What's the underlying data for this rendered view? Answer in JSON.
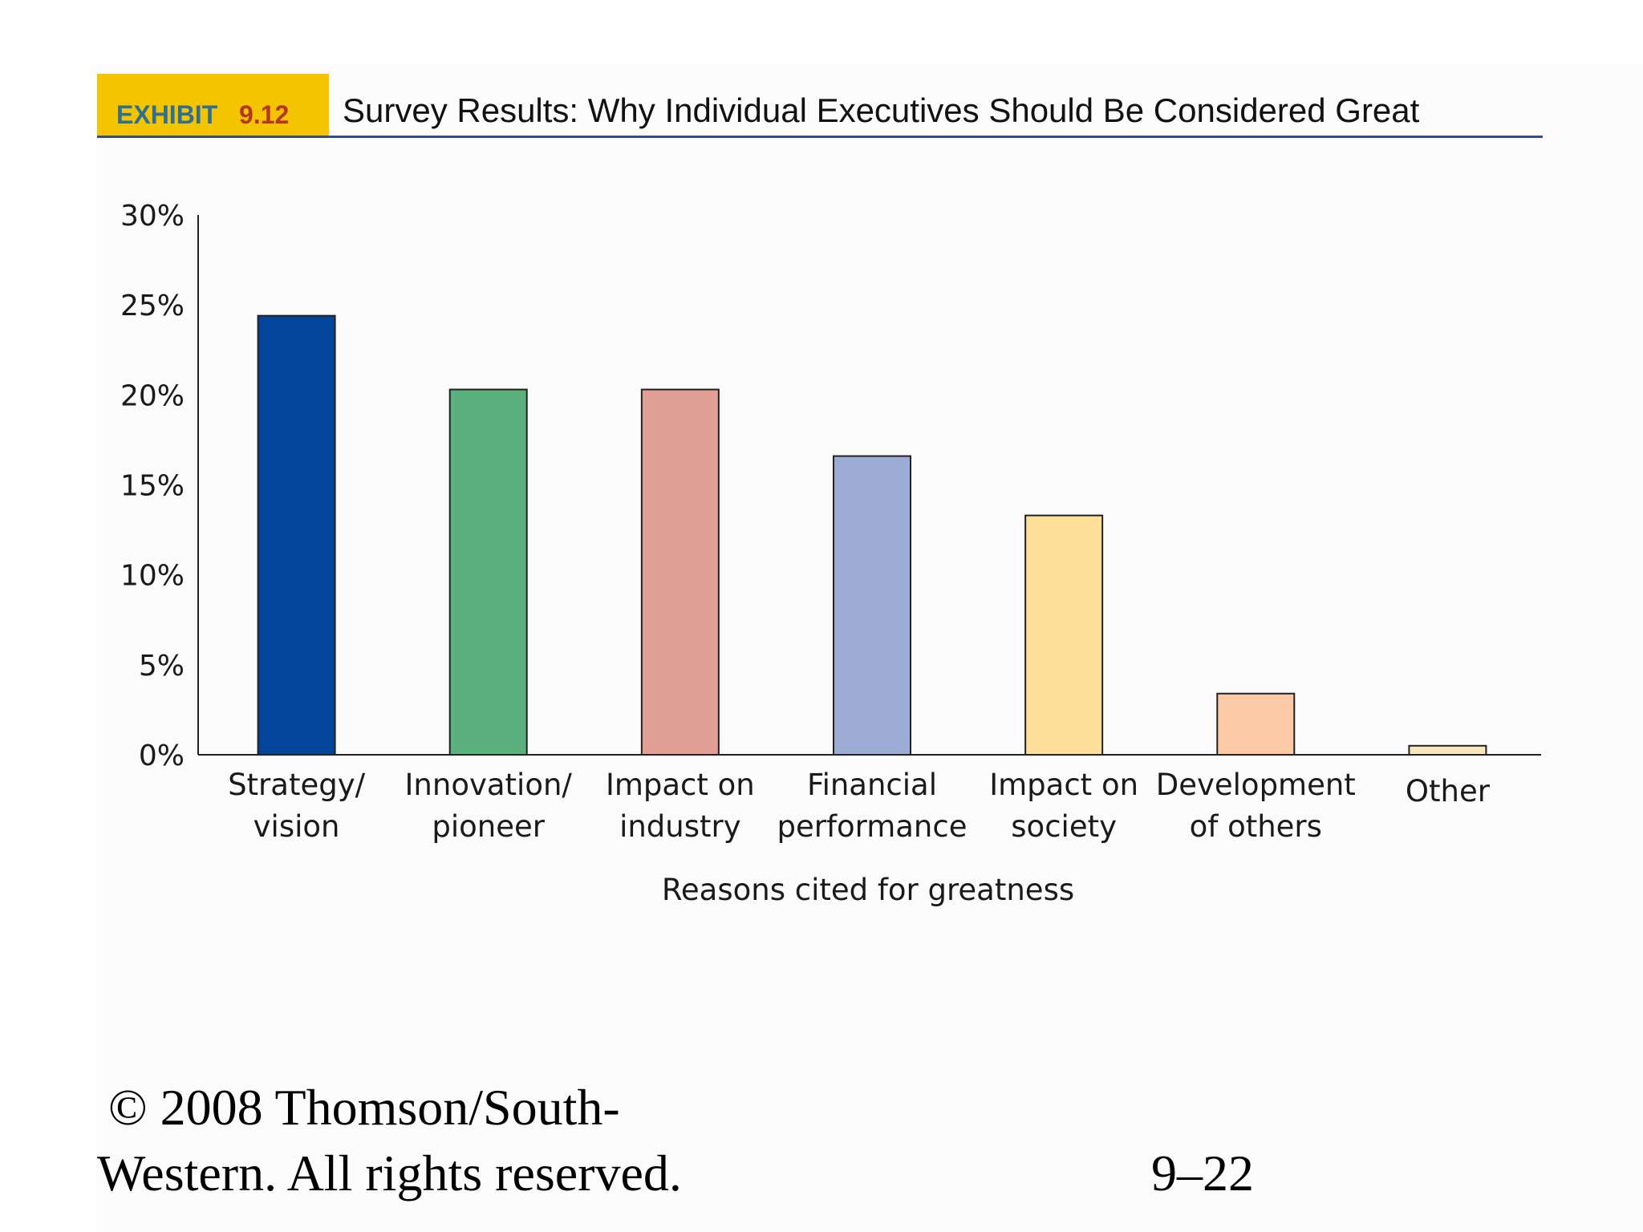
{
  "header": {
    "exhibit_label": "EXHIBIT",
    "exhibit_number": "9.12",
    "title": "Survey Results: Why Individual Executives Should Be Considered Great"
  },
  "chart_data": {
    "type": "bar",
    "xlabel": "Reasons cited for greatness",
    "ylabel": "",
    "ylim": [
      0,
      30
    ],
    "yticks": [
      "0%",
      "5%",
      "10%",
      "15%",
      "20%",
      "25%",
      "30%"
    ],
    "grid": false,
    "categories": [
      [
        "Strategy/",
        "vision"
      ],
      [
        "Innovation/",
        "pioneer"
      ],
      [
        "Impact on",
        "industry"
      ],
      [
        "Financial",
        "performance"
      ],
      [
        "Impact on",
        "society"
      ],
      [
        "Development",
        "of others"
      ],
      [
        "Other"
      ]
    ],
    "values": [
      24.4,
      20.3,
      20.3,
      16.6,
      13.3,
      3.4,
      0.5
    ],
    "colors": [
      "#03459a",
      "#5bb17d",
      "#e09e95",
      "#9dacd5",
      "#fddf9a",
      "#fbc9a6",
      "#f8e8be"
    ]
  },
  "footer": {
    "copyright_line_1": "© 2008 Thomson/South-",
    "copyright_line_2": "Western. All rights reserved.",
    "page_number": "9–22"
  }
}
